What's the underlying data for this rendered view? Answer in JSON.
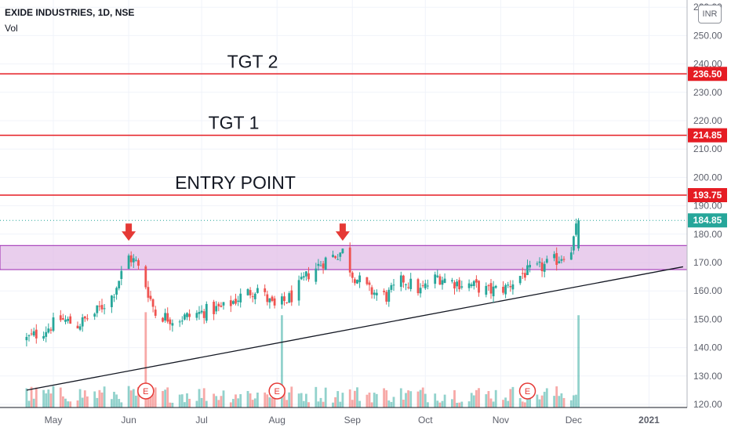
{
  "header": {
    "title": "EXIDE INDUSTRIES, 1D, NSE",
    "volume_label": "Vol"
  },
  "currency_badge": "INR",
  "colors": {
    "up": "#26a69a",
    "down": "#ef5350",
    "level_line": "#e51c23",
    "zone_fill": "#e1bee7",
    "zone_border": "#9c27b0",
    "trendline": "#131722",
    "last_price": "#26a69a",
    "arrow": "#e53935"
  },
  "chart_data": {
    "type": "candlestick",
    "symbol": "EXIDE INDUSTRIES",
    "timeframe": "1D",
    "exchange": "NSE",
    "ylim": [
      120,
      261
    ],
    "y_ticks": [
      120,
      130,
      140,
      150,
      160,
      170,
      180,
      190,
      200,
      210,
      220,
      230,
      240,
      250,
      260
    ],
    "y_tick_labels": [
      "120.00",
      "130.00",
      "140.00",
      "150.00",
      "160.00",
      "170.00",
      "180.00",
      "190.00",
      "200.00",
      "210.00",
      "220.00",
      "230.00",
      "240.00",
      "250.00",
      "260.00"
    ],
    "x_range": [
      "2020-04-20",
      "2021-01-15"
    ],
    "x_ticks": [
      {
        "date": "2020-05-01",
        "label": "May"
      },
      {
        "date": "2020-06-01",
        "label": "Jun"
      },
      {
        "date": "2020-07-01",
        "label": "Jul"
      },
      {
        "date": "2020-08-01",
        "label": "Aug"
      },
      {
        "date": "2020-09-01",
        "label": "Sep"
      },
      {
        "date": "2020-10-01",
        "label": "Oct"
      },
      {
        "date": "2020-11-01",
        "label": "Nov"
      },
      {
        "date": "2020-12-01",
        "label": "Dec"
      },
      {
        "date": "2021-01-01",
        "label": "2021"
      }
    ],
    "price_path": [
      [
        "2020-04-20",
        143
      ],
      [
        "2020-04-27",
        146
      ],
      [
        "2020-05-04",
        150
      ],
      [
        "2020-05-11",
        148
      ],
      [
        "2020-05-18",
        152
      ],
      [
        "2020-05-25",
        158
      ],
      [
        "2020-06-01",
        172
      ],
      [
        "2020-06-04",
        170
      ],
      [
        "2020-06-08",
        162
      ],
      [
        "2020-06-12",
        152
      ],
      [
        "2020-06-19",
        150
      ],
      [
        "2020-06-26",
        151
      ],
      [
        "2020-07-03",
        153
      ],
      [
        "2020-07-10",
        154
      ],
      [
        "2020-07-17",
        158
      ],
      [
        "2020-07-24",
        161
      ],
      [
        "2020-07-31",
        154
      ],
      [
        "2020-08-07",
        158
      ],
      [
        "2020-08-14",
        166
      ],
      [
        "2020-08-21",
        171
      ],
      [
        "2020-08-28",
        174
      ],
      [
        "2020-09-01",
        166
      ],
      [
        "2020-09-08",
        160
      ],
      [
        "2020-09-15",
        158
      ],
      [
        "2020-09-22",
        164
      ],
      [
        "2020-09-29",
        160
      ],
      [
        "2020-10-06",
        165
      ],
      [
        "2020-10-13",
        163
      ],
      [
        "2020-10-20",
        162
      ],
      [
        "2020-10-27",
        160
      ],
      [
        "2020-11-03",
        161
      ],
      [
        "2020-11-10",
        166
      ],
      [
        "2020-11-17",
        168
      ],
      [
        "2020-11-24",
        171
      ],
      [
        "2020-11-30",
        175
      ],
      [
        "2020-12-03",
        184.85
      ]
    ],
    "last_price": 184.85,
    "horizontal_levels": [
      {
        "value": 236.5,
        "label": "236.50",
        "annotation": "TGT 2"
      },
      {
        "value": 214.85,
        "label": "214.85",
        "annotation": "TGT 1"
      },
      {
        "value": 193.75,
        "label": "193.75",
        "annotation": "ENTRY POINT"
      }
    ],
    "last_price_label": "184.85",
    "resistance_zone": [
      167.5,
      176
    ],
    "trendline": [
      [
        "2020-04-20",
        125
      ],
      [
        "2021-01-15",
        168.5
      ]
    ],
    "resistance_touches": [
      {
        "date": "2020-06-01",
        "value": 176
      },
      {
        "date": "2020-08-28",
        "value": 176
      }
    ],
    "earnings_markers": [
      {
        "date": "2020-06-08",
        "label": "E"
      },
      {
        "date": "2020-08-01",
        "label": "E"
      },
      {
        "date": "2020-11-12",
        "label": "E"
      }
    ],
    "volume_spikes": [
      {
        "date": "2020-06-08",
        "relative": 0.95,
        "direction": "down"
      },
      {
        "date": "2020-08-03",
        "relative": 0.92,
        "direction": "up"
      },
      {
        "date": "2020-12-03",
        "relative": 0.92,
        "direction": "up"
      }
    ]
  }
}
